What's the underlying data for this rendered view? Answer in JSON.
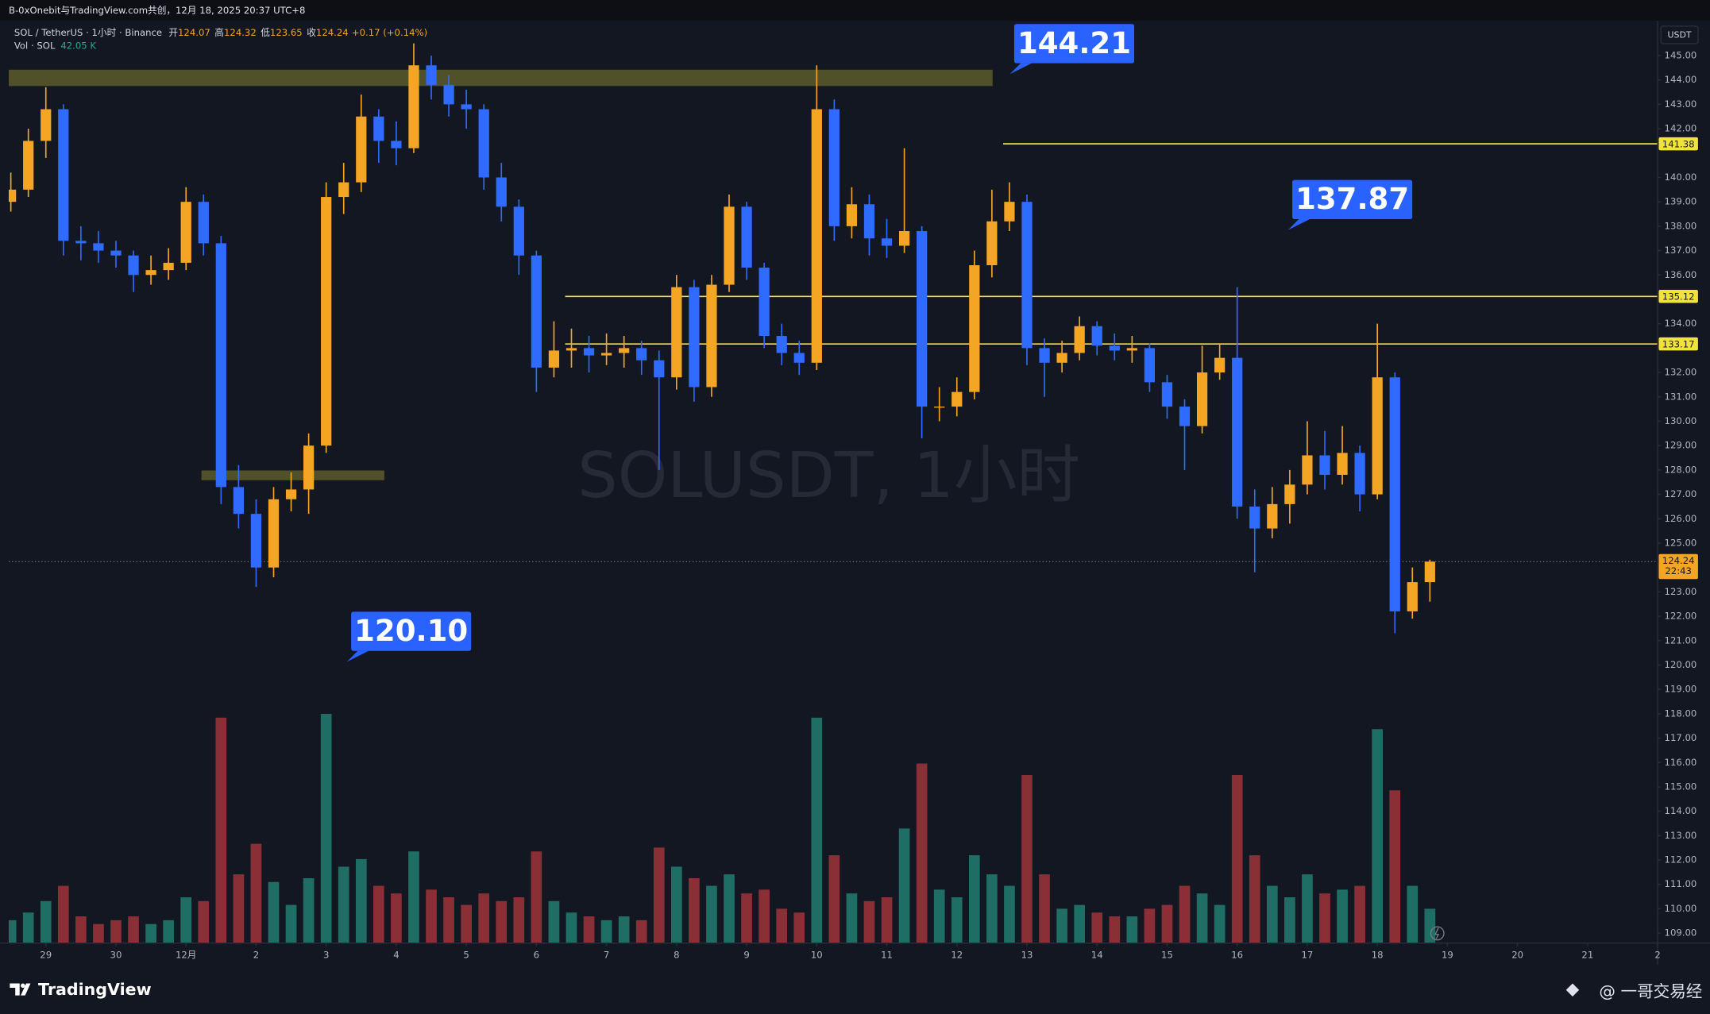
{
  "header": {
    "source": "B-0xOnebit与TradingView.com共创，12月 18, 2025 20:37 UTC+8"
  },
  "chart_data": {
    "type": "candlestick",
    "symbol": "SOL / TetherUS · 1小时 · Binance",
    "ohlc_labels": [
      "开",
      "高",
      "低",
      "收"
    ],
    "ohlc_values": [
      124.07,
      124.32,
      123.65,
      124.24
    ],
    "change": "+0.17 (+0.14%)",
    "volume_label": "Vol · SOL",
    "volume_value": "42.05 K",
    "watermark": "SOLUSDT, 1小时",
    "currency": "USDT",
    "x": [
      -0.5,
      -0.25,
      0,
      0.25,
      0.5,
      0.75,
      1,
      1.25,
      1.5,
      1.75,
      2,
      2.25,
      2.5,
      2.75,
      3,
      3.25,
      3.5,
      3.75,
      4,
      4.25,
      4.5,
      4.75,
      5,
      5.25,
      5.5,
      5.75,
      6,
      6.25,
      6.5,
      6.75,
      7,
      7.25,
      7.5,
      7.75,
      8,
      8.25,
      8.5,
      8.75,
      9,
      9.25,
      9.5,
      9.75,
      10,
      10.25,
      10.5,
      10.75,
      11,
      11.25,
      11.5,
      11.75,
      12,
      12.25,
      12.5,
      12.75,
      13,
      13.25,
      13.5,
      13.75,
      14,
      14.25,
      14.5,
      14.75,
      15,
      15.25,
      15.5,
      15.75,
      16,
      16.25,
      16.5,
      16.75,
      17,
      17.25,
      17.5,
      17.75,
      18,
      18.25,
      18.5,
      18.75,
      19,
      19.25,
      19.5,
      19.75
    ],
    "open": [
      139.0,
      139.5,
      141.5,
      142.8,
      137.4,
      137.3,
      137.0,
      136.8,
      136.0,
      136.2,
      136.5,
      139.0,
      137.3,
      127.3,
      126.2,
      124.0,
      126.8,
      127.2,
      129.0,
      139.2,
      139.8,
      142.5,
      141.5,
      141.2,
      144.6,
      143.8,
      143.0,
      142.8,
      140.0,
      138.8,
      136.8,
      132.2,
      132.9,
      133.0,
      132.7,
      132.8,
      133.0,
      132.5,
      131.8,
      135.5,
      131.4,
      135.6,
      138.8,
      136.3,
      133.5,
      132.8,
      132.4,
      142.8,
      138.0,
      138.9,
      137.5,
      137.2,
      137.8,
      130.6,
      130.6,
      131.2,
      136.4,
      138.2,
      139.0,
      133.0,
      132.4,
      132.8,
      133.9,
      133.1,
      132.9,
      133.0,
      131.6,
      130.6,
      129.8,
      132.0,
      132.6,
      126.5,
      125.6,
      126.6,
      127.4,
      128.6,
      127.8,
      128.7,
      127.0,
      131.8,
      122.2,
      123.4
    ],
    "high": [
      140.2,
      142.0,
      143.7,
      143.0,
      138.0,
      137.8,
      137.4,
      137.0,
      136.8,
      137.1,
      139.6,
      139.3,
      137.6,
      128.2,
      126.8,
      127.3,
      127.9,
      129.5,
      139.8,
      140.6,
      143.4,
      142.8,
      142.3,
      145.5,
      145.0,
      144.2,
      143.6,
      143.0,
      140.6,
      139.1,
      137.0,
      134.1,
      133.8,
      133.5,
      133.6,
      133.5,
      133.3,
      132.9,
      136.0,
      135.8,
      136.0,
      139.3,
      139.0,
      136.5,
      134.0,
      133.3,
      144.6,
      143.2,
      139.6,
      139.3,
      138.3,
      141.2,
      138.0,
      131.4,
      131.8,
      137.0,
      139.5,
      139.8,
      139.3,
      133.4,
      133.3,
      134.3,
      134.1,
      133.6,
      133.5,
      133.2,
      131.9,
      130.9,
      133.1,
      133.2,
      135.5,
      127.2,
      127.3,
      128.0,
      130.0,
      129.6,
      129.8,
      129.0,
      134.0,
      132.0,
      124.0,
      124.32
    ],
    "low": [
      138.6,
      139.2,
      140.8,
      136.8,
      136.6,
      136.5,
      136.3,
      135.3,
      135.6,
      135.8,
      136.2,
      136.8,
      126.6,
      125.6,
      123.2,
      123.6,
      126.3,
      126.2,
      128.7,
      138.5,
      139.4,
      140.6,
      140.5,
      141.0,
      143.2,
      142.5,
      142.0,
      139.5,
      138.2,
      136.0,
      131.2,
      131.8,
      132.2,
      132.0,
      132.3,
      132.2,
      131.9,
      128.0,
      131.3,
      130.8,
      131.0,
      135.3,
      135.8,
      133.0,
      132.3,
      131.9,
      132.1,
      137.4,
      137.5,
      136.8,
      136.7,
      136.9,
      129.3,
      130.0,
      130.2,
      130.9,
      135.9,
      137.8,
      132.3,
      131.0,
      132.0,
      132.5,
      132.7,
      132.5,
      132.4,
      131.2,
      130.1,
      128.0,
      129.5,
      131.7,
      126.0,
      123.8,
      125.2,
      125.8,
      127.0,
      127.2,
      127.4,
      126.3,
      126.8,
      121.3,
      121.9,
      122.6
    ],
    "close": [
      139.5,
      141.5,
      142.8,
      137.4,
      137.3,
      137.0,
      136.8,
      136.0,
      136.2,
      136.5,
      139.0,
      137.3,
      127.3,
      126.2,
      124.0,
      126.8,
      127.2,
      129.0,
      139.2,
      139.8,
      142.5,
      141.5,
      141.2,
      144.6,
      143.8,
      143.0,
      142.8,
      140.0,
      138.8,
      136.8,
      132.2,
      132.9,
      133.0,
      132.7,
      132.8,
      133.0,
      132.5,
      131.8,
      135.5,
      131.4,
      135.6,
      138.8,
      136.3,
      133.5,
      132.8,
      132.4,
      142.8,
      138.0,
      138.9,
      137.5,
      137.2,
      137.8,
      130.6,
      130.6,
      131.2,
      136.4,
      138.2,
      139.0,
      133.0,
      132.4,
      132.8,
      133.9,
      133.1,
      132.9,
      133.0,
      131.6,
      130.6,
      129.8,
      132.0,
      132.6,
      126.5,
      125.6,
      126.6,
      127.4,
      128.6,
      127.8,
      128.7,
      127.0,
      131.8,
      122.2,
      123.4,
      124.24
    ],
    "volume": [
      60,
      80,
      110,
      150,
      70,
      50,
      60,
      70,
      50,
      60,
      120,
      110,
      590,
      180,
      260,
      160,
      100,
      170,
      600,
      200,
      220,
      150,
      130,
      240,
      140,
      120,
      100,
      130,
      110,
      120,
      240,
      110,
      80,
      70,
      60,
      70,
      60,
      250,
      200,
      170,
      150,
      180,
      130,
      140,
      90,
      80,
      590,
      230,
      130,
      110,
      120,
      300,
      470,
      140,
      120,
      230,
      180,
      150,
      440,
      180,
      90,
      100,
      80,
      70,
      70,
      90,
      100,
      150,
      130,
      100,
      440,
      230,
      150,
      120,
      180,
      130,
      140,
      150,
      560,
      400,
      150,
      90
    ],
    "up_color": "#f5a524",
    "down_color": "#2f6bff",
    "volume_up_color": "#1f6e66",
    "volume_down_color": "#8a2f36",
    "xlim": [
      -0.53,
      23
    ],
    "xticks": [
      {
        "value": 0,
        "label": "29"
      },
      {
        "value": 1,
        "label": "30"
      },
      {
        "value": 2,
        "label": "12月"
      },
      {
        "value": 3,
        "label": "2"
      },
      {
        "value": 4,
        "label": "3"
      },
      {
        "value": 5,
        "label": "4"
      },
      {
        "value": 6,
        "label": "5"
      },
      {
        "value": 7,
        "label": "6"
      },
      {
        "value": 8,
        "label": "7"
      },
      {
        "value": 9,
        "label": "8"
      },
      {
        "value": 10,
        "label": "9"
      },
      {
        "value": 11,
        "label": "10"
      },
      {
        "value": 12,
        "label": "11"
      },
      {
        "value": 13,
        "label": "12"
      },
      {
        "value": 14,
        "label": "13"
      },
      {
        "value": 15,
        "label": "14"
      },
      {
        "value": 16,
        "label": "15"
      },
      {
        "value": 17,
        "label": "16"
      },
      {
        "value": 18,
        "label": "17"
      },
      {
        "value": 19,
        "label": "18"
      },
      {
        "value": 20,
        "label": "19"
      },
      {
        "value": 21,
        "label": "20"
      },
      {
        "value": 22,
        "label": "21"
      },
      {
        "value": 23,
        "label": "2"
      }
    ],
    "ylim": [
      108.59,
      146.43
    ],
    "yticks": [
      {
        "value": 109,
        "label": "109.00"
      },
      {
        "value": 110,
        "label": "110.00"
      },
      {
        "value": 111,
        "label": "111.00"
      },
      {
        "value": 112,
        "label": "112.00"
      },
      {
        "value": 113,
        "label": "113.00"
      },
      {
        "value": 114,
        "label": "114.00"
      },
      {
        "value": 115,
        "label": "115.00"
      },
      {
        "value": 116,
        "label": "116.00"
      },
      {
        "value": 117,
        "label": "117.00"
      },
      {
        "value": 118,
        "label": "118.00"
      },
      {
        "value": 119,
        "label": "119.00"
      },
      {
        "value": 120,
        "label": "120.00"
      },
      {
        "value": 121,
        "label": "121.00"
      },
      {
        "value": 122,
        "label": "122.00"
      },
      {
        "value": 123,
        "label": "123.00"
      },
      {
        "value": 125,
        "label": "125.00"
      },
      {
        "value": 126,
        "label": "126.00"
      },
      {
        "value": 127,
        "label": "127.00"
      },
      {
        "value": 128,
        "label": "128.00"
      },
      {
        "value": 129,
        "label": "129.00"
      },
      {
        "value": 130,
        "label": "130.00"
      },
      {
        "value": 131,
        "label": "131.00"
      },
      {
        "value": 132,
        "label": "132.00"
      },
      {
        "value": 134,
        "label": "134.00"
      },
      {
        "value": 136,
        "label": "136.00"
      },
      {
        "value": 137,
        "label": "137.00"
      },
      {
        "value": 138,
        "label": "138.00"
      },
      {
        "value": 139,
        "label": "139.00"
      },
      {
        "value": 140,
        "label": "140.00"
      },
      {
        "value": 142,
        "label": "142.00"
      },
      {
        "value": 143,
        "label": "143.00"
      },
      {
        "value": 144,
        "label": "144.00"
      },
      {
        "value": 145,
        "label": "145.00"
      }
    ],
    "volume_ylim": [
      0,
      2414
    ],
    "levels": [
      {
        "value": 141.38,
        "start": 13.66,
        "color": "#f2e33c"
      },
      {
        "value": 135.12,
        "start": 7.41,
        "color": "#f2e33c"
      },
      {
        "value": 133.17,
        "start": 7.41,
        "color": "#f2e33c"
      }
    ],
    "zones": [
      {
        "low": 143.75,
        "high": 144.42,
        "start": -0.53,
        "end": 13.51,
        "color": "#5c5a2a"
      },
      {
        "low": 127.58,
        "high": 127.98,
        "start": 2.22,
        "end": 4.83,
        "color": "#5c5a2a"
      }
    ],
    "callouts": [
      "144.21",
      "137.87",
      "120.10"
    ],
    "callout_color": "#2962ff",
    "last_price": 124.24,
    "countdown": "22:43",
    "last_color": "#f5a524"
  },
  "footer": {
    "brand": "TradingView",
    "credit": "@ 一哥交易经"
  }
}
